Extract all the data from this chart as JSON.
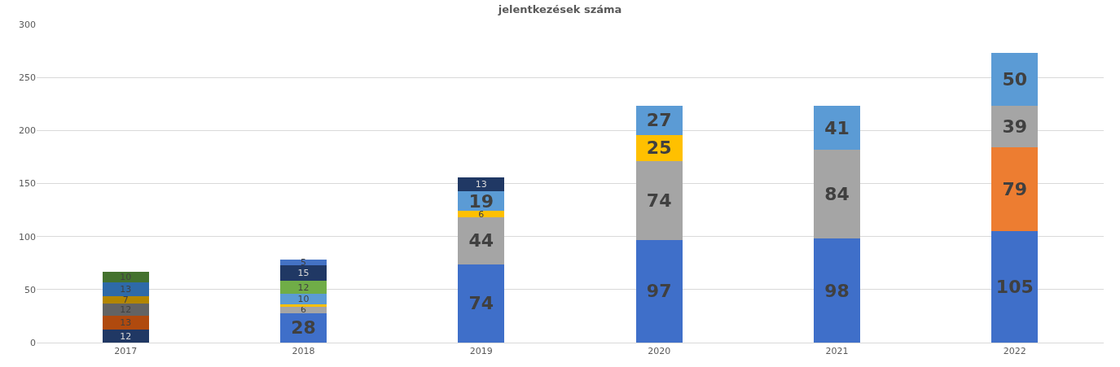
{
  "chart_data": {
    "type": "bar",
    "title": "jelentkezések száma",
    "stacked": true,
    "categories": [
      "2017",
      "2018",
      "2019",
      "2020",
      "2021",
      "2022"
    ],
    "series": [
      {
        "values": [
          12,
          28,
          74,
          97,
          98,
          105
        ],
        "colors": [
          "#203864",
          "#3f6fc9",
          "#3f6fc9",
          "#3f6fc9",
          "#3f6fc9",
          "#3f6fc9"
        ],
        "value_labels": [
          "12",
          "28",
          "74",
          "97",
          "98",
          "105"
        ]
      },
      {
        "values": [
          13,
          6,
          44,
          74,
          84,
          79
        ],
        "colors": [
          "#b04a0e",
          "#a5a5a5",
          "#a5a5a5",
          "#a5a5a5",
          "#a5a5a5",
          "#ed7d31"
        ],
        "value_labels": [
          "13",
          "6",
          "44",
          "74",
          "84",
          "79"
        ]
      },
      {
        "values": [
          12,
          2,
          6,
          25,
          41,
          39
        ],
        "colors": [
          "#636363",
          "#ffc000",
          "#ffc000",
          "#ffc000",
          "#5b9bd5",
          "#a5a5a5"
        ],
        "value_labels": [
          "12",
          null,
          "6",
          "25",
          "41",
          "39"
        ]
      },
      {
        "values": [
          7,
          10,
          19,
          27,
          null,
          50
        ],
        "colors": [
          "#b38600",
          "#5b9bd5",
          "#5b9bd5",
          "#5b9bd5",
          null,
          "#5b9bd5"
        ],
        "value_labels": [
          "7",
          "10",
          "19",
          "27",
          null,
          "50"
        ]
      },
      {
        "values": [
          13,
          12,
          13,
          null,
          null,
          null
        ],
        "colors": [
          "#2e6aa8",
          "#70ad47",
          "#203864",
          null,
          null,
          null
        ],
        "value_labels": [
          "13",
          "12",
          "13",
          null,
          null,
          null
        ]
      },
      {
        "values": [
          10,
          15,
          null,
          null,
          null,
          null
        ],
        "colors": [
          "#44722e",
          "#203864",
          null,
          null,
          null,
          null
        ],
        "value_labels": [
          "10",
          "15",
          null,
          null,
          null,
          null
        ]
      },
      {
        "values": [
          null,
          5,
          null,
          null,
          null,
          null
        ],
        "colors": [
          null,
          "#4472c4",
          null,
          null,
          null,
          null
        ],
        "value_labels": [
          null,
          "5",
          null,
          null,
          null,
          null
        ]
      }
    ],
    "ylim": [
      0,
      300
    ],
    "yticks": [
      0,
      50,
      100,
      150,
      200,
      250,
      300
    ],
    "grid": "y"
  }
}
